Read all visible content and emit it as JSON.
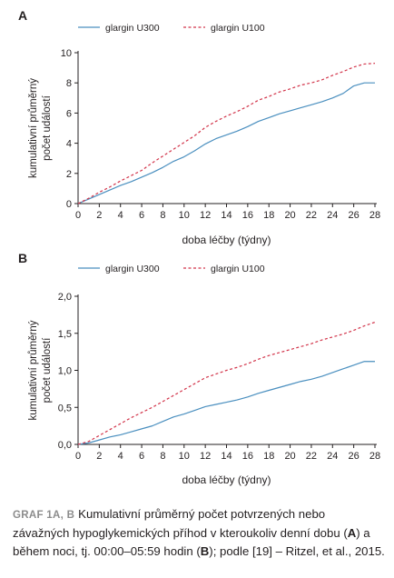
{
  "colors": {
    "u300": "#4a8fbf",
    "u100": "#d2344a",
    "axis": "#231f20"
  },
  "chart_data": [
    {
      "panel": "A",
      "type": "line",
      "xlabel": "doba léčby (týdny)",
      "ylabel_lines": [
        "kumulativní průměrný",
        "počet událostí"
      ],
      "xlim": [
        0,
        28
      ],
      "ylim": [
        0,
        10
      ],
      "x_ticks": [
        0,
        2,
        4,
        6,
        8,
        10,
        12,
        14,
        16,
        18,
        20,
        22,
        24,
        26,
        28
      ],
      "y_ticks": [
        0,
        2,
        4,
        6,
        8,
        10
      ],
      "y_tick_labels": [
        "0",
        "2",
        "4",
        "6",
        "8",
        "10"
      ],
      "legend_position": "top",
      "series": [
        {
          "name": "glargin U300",
          "style": "solid",
          "x": [
            0,
            1,
            2,
            3,
            4,
            5,
            6,
            7,
            8,
            9,
            10,
            11,
            12,
            13,
            14,
            15,
            16,
            17,
            18,
            19,
            20,
            21,
            22,
            23,
            24,
            25,
            26,
            27,
            28
          ],
          "y": [
            0,
            0.3,
            0.6,
            0.9,
            1.2,
            1.45,
            1.75,
            2.05,
            2.4,
            2.8,
            3.1,
            3.5,
            3.95,
            4.3,
            4.55,
            4.8,
            5.1,
            5.45,
            5.7,
            5.95,
            6.15,
            6.35,
            6.55,
            6.75,
            7.0,
            7.3,
            7.8,
            8.0,
            8.0
          ]
        },
        {
          "name": "glargin U100",
          "style": "dashed",
          "x": [
            0,
            1,
            2,
            3,
            4,
            5,
            6,
            7,
            8,
            9,
            10,
            11,
            12,
            13,
            14,
            15,
            16,
            17,
            18,
            19,
            20,
            21,
            22,
            23,
            24,
            25,
            26,
            27,
            28
          ],
          "y": [
            0,
            0.35,
            0.75,
            1.1,
            1.5,
            1.85,
            2.2,
            2.7,
            3.15,
            3.6,
            4.05,
            4.5,
            5.05,
            5.45,
            5.8,
            6.1,
            6.45,
            6.85,
            7.1,
            7.4,
            7.6,
            7.85,
            8.0,
            8.2,
            8.5,
            8.75,
            9.05,
            9.25,
            9.3
          ]
        }
      ]
    },
    {
      "panel": "B",
      "type": "line",
      "xlabel": "doba léčby (týdny)",
      "ylabel_lines": [
        "kumulativní průměrný",
        "počet událostí"
      ],
      "xlim": [
        0,
        28
      ],
      "ylim": [
        0,
        2
      ],
      "x_ticks": [
        0,
        2,
        4,
        6,
        8,
        10,
        12,
        14,
        16,
        18,
        20,
        22,
        24,
        26,
        28
      ],
      "y_ticks": [
        0,
        0.5,
        1,
        1.5,
        2
      ],
      "y_tick_labels": [
        "0,0",
        "0,5",
        "1,0",
        "1,5",
        "2,0"
      ],
      "legend_position": "top",
      "series": [
        {
          "name": "glargin U300",
          "style": "solid",
          "x": [
            0,
            1,
            2,
            3,
            4,
            5,
            6,
            7,
            8,
            9,
            10,
            11,
            12,
            13,
            14,
            15,
            16,
            17,
            18,
            19,
            20,
            21,
            22,
            23,
            24,
            25,
            26,
            27,
            28
          ],
          "y": [
            0,
            0.02,
            0.06,
            0.1,
            0.13,
            0.17,
            0.21,
            0.25,
            0.31,
            0.37,
            0.41,
            0.46,
            0.51,
            0.54,
            0.57,
            0.6,
            0.64,
            0.69,
            0.73,
            0.77,
            0.81,
            0.85,
            0.88,
            0.92,
            0.97,
            1.02,
            1.07,
            1.12,
            1.12
          ]
        },
        {
          "name": "glargin U100",
          "style": "dashed",
          "x": [
            0,
            1,
            2,
            3,
            4,
            5,
            6,
            7,
            8,
            9,
            10,
            11,
            12,
            13,
            14,
            15,
            16,
            17,
            18,
            19,
            20,
            21,
            22,
            23,
            24,
            25,
            26,
            27,
            28
          ],
          "y": [
            0,
            0.04,
            0.12,
            0.2,
            0.28,
            0.36,
            0.43,
            0.5,
            0.58,
            0.66,
            0.74,
            0.82,
            0.9,
            0.95,
            1.0,
            1.04,
            1.09,
            1.15,
            1.2,
            1.24,
            1.28,
            1.32,
            1.36,
            1.41,
            1.45,
            1.49,
            1.54,
            1.6,
            1.65
          ]
        }
      ]
    }
  ],
  "caption": {
    "tag": "GRAF 1A, B",
    "part1": "Kumulativní průměrný počet potvrzených nebo závažných hypoglykemických příhod v kteroukoliv denní dobu (",
    "bold_a": "A",
    "part2": ") a během noci, tj. 00:00–05:59 hodin (",
    "bold_b": "B",
    "part3": "); podle [19] – Ritzel, et al., 2015."
  }
}
